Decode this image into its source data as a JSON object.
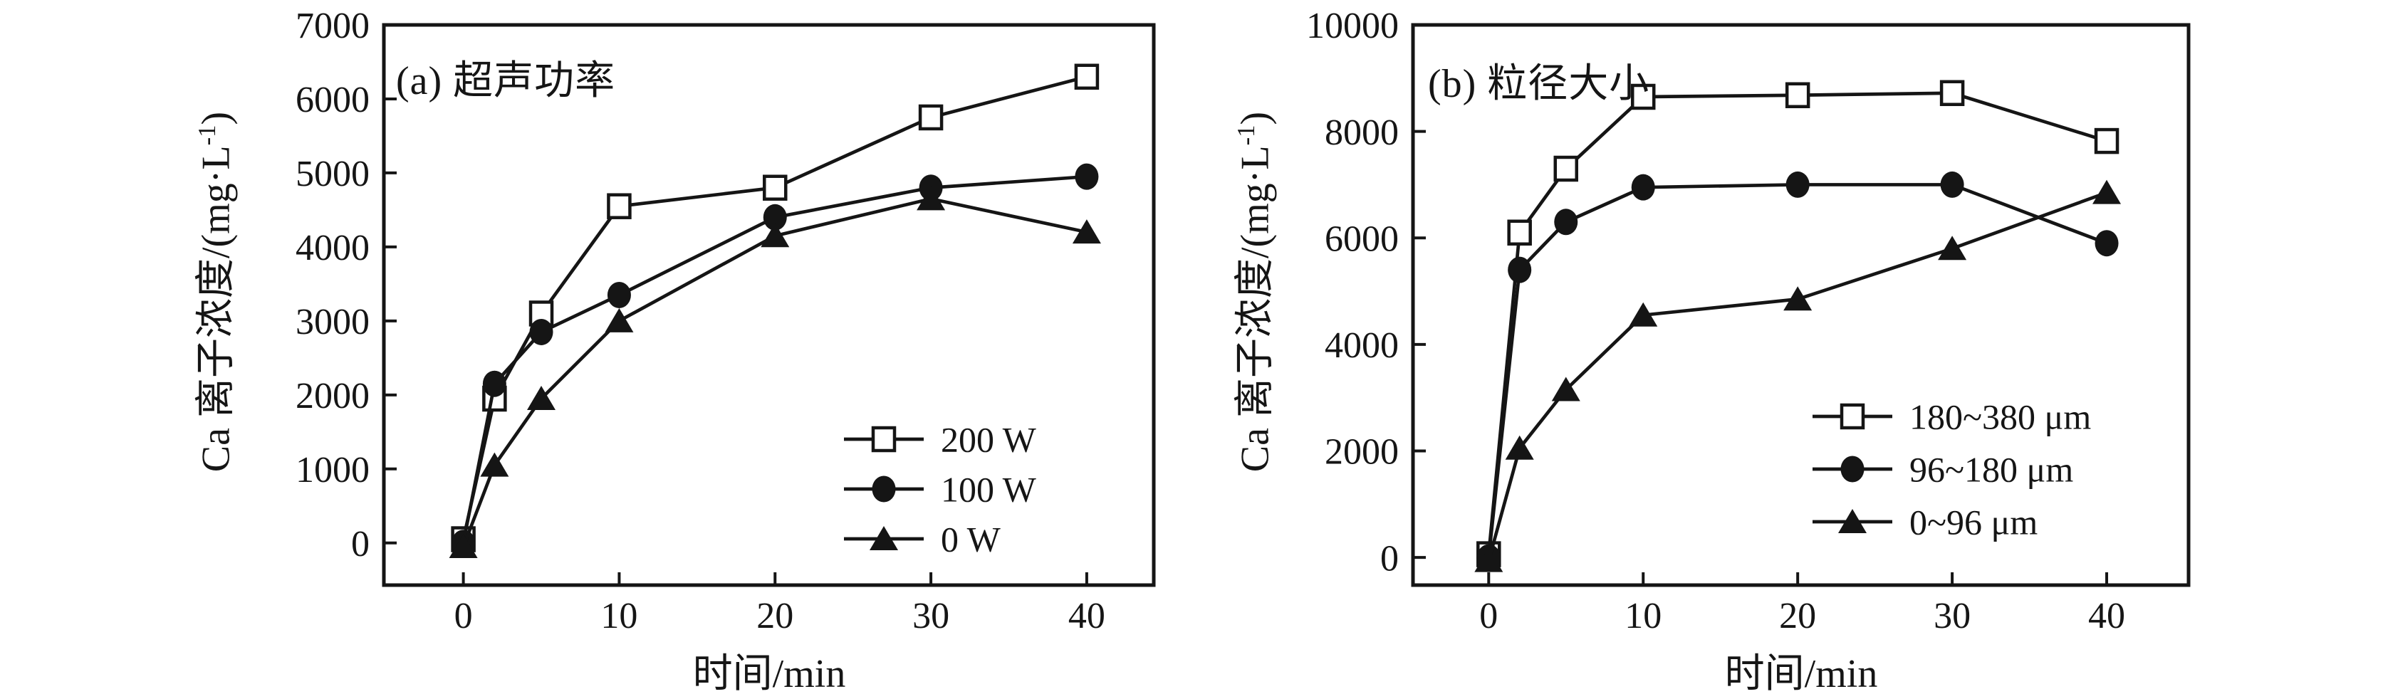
{
  "figure": {
    "background": "#ffffff",
    "ink_color": "#151515"
  },
  "chart_data": [
    {
      "type": "line",
      "title": "(a) 超声功率",
      "xlabel": "时间/min",
      "ylabel": "Ca 离子浓度/(mg·L⁻¹)",
      "ylabel_parts": {
        "prefix": "Ca 离子浓度/(mg·L",
        "sup": "-1",
        "suffix": ")"
      },
      "x": [
        0,
        2,
        5,
        10,
        20,
        30,
        40
      ],
      "x_ticks": [
        0,
        10,
        20,
        30,
        40
      ],
      "y_ticks": [
        0,
        1000,
        2000,
        3000,
        4000,
        5000,
        6000,
        7000
      ],
      "xlim": [
        -5.1,
        44.3
      ],
      "ylim": [
        -570,
        7000
      ],
      "grid": false,
      "legend_position": "lower right",
      "series": [
        {
          "name": "200 W",
          "marker": "open-square",
          "values": [
            50,
            1950,
            3100,
            4550,
            4800,
            5750,
            6300
          ]
        },
        {
          "name": "100 W",
          "marker": "filled-circle",
          "values": [
            0,
            2150,
            2850,
            3350,
            4400,
            4800,
            4950
          ]
        },
        {
          "name": "0 W",
          "marker": "filled-triangle",
          "values": [
            -50,
            1050,
            1950,
            3000,
            4150,
            4650,
            4200
          ]
        }
      ]
    },
    {
      "type": "line",
      "title": "(b) 粒径大小",
      "xlabel": "时间/min",
      "ylabel": "Ca 离子浓度/(mg·L⁻¹)",
      "ylabel_parts": {
        "prefix": "Ca 离子浓度/(mg·L",
        "sup": "-1",
        "suffix": ")"
      },
      "x": [
        0,
        2,
        5,
        10,
        20,
        30,
        40
      ],
      "x_ticks": [
        0,
        10,
        20,
        30,
        40
      ],
      "y_ticks": [
        0,
        2000,
        4000,
        6000,
        8000,
        10000
      ],
      "xlim": [
        -4.9,
        45.3
      ],
      "ylim": [
        -520,
        10000
      ],
      "grid": false,
      "legend_position": "center right",
      "series": [
        {
          "name": "180~380 μm",
          "marker": "open-square",
          "values": [
            60,
            6100,
            7300,
            8650,
            8680,
            8720,
            7820
          ]
        },
        {
          "name": "96~180 μm",
          "marker": "filled-circle",
          "values": [
            0,
            5400,
            6300,
            6950,
            7000,
            7000,
            5900
          ]
        },
        {
          "name": "0~96 μm",
          "marker": "filled-triangle",
          "values": [
            -60,
            2050,
            3150,
            4550,
            4850,
            5800,
            6850
          ]
        }
      ]
    }
  ]
}
